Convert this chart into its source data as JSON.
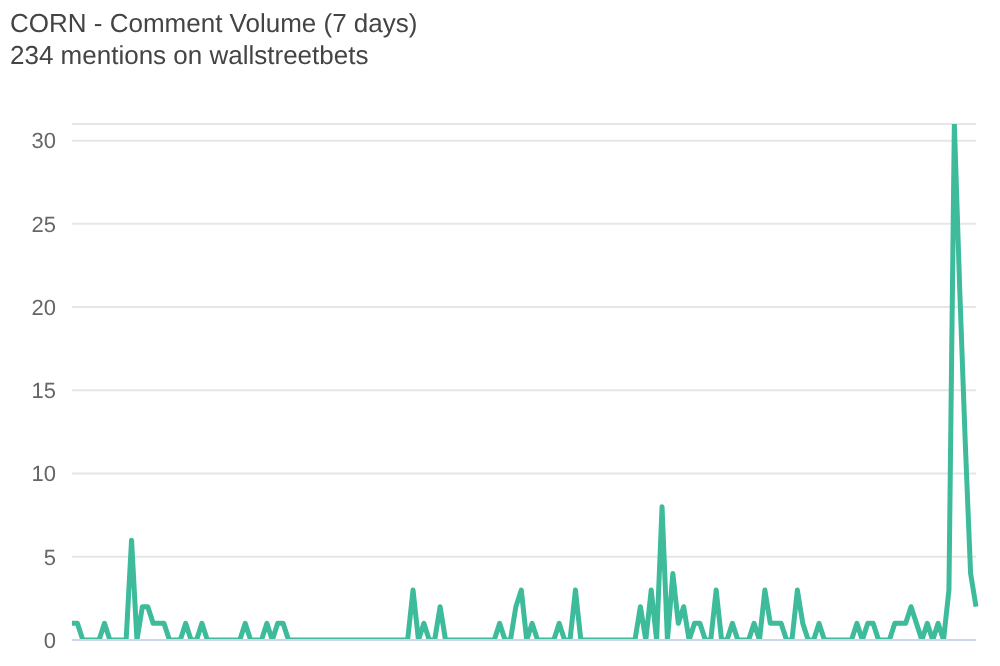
{
  "chart_data": {
    "type": "line",
    "title": "CORN - Comment Volume (7 days)",
    "subtitle": "234 mentions on wallstreetbets",
    "categories": [
      null,
      null,
      null,
      null,
      null,
      null,
      null,
      null,
      null,
      null,
      null,
      null,
      null,
      null,
      null,
      null,
      null,
      null,
      null,
      null,
      null,
      null,
      null,
      null,
      null,
      null,
      null,
      null,
      null,
      null,
      null,
      null,
      null,
      null,
      null,
      null,
      null,
      null,
      null,
      null,
      null,
      null,
      null,
      null,
      null,
      null,
      null,
      null,
      null,
      null,
      null,
      null,
      null,
      null,
      null,
      null,
      null,
      null,
      null,
      null,
      null,
      null,
      null,
      null,
      null,
      null,
      null,
      null,
      null,
      null,
      null,
      null,
      null,
      null,
      null,
      null,
      null,
      null,
      null,
      null,
      null,
      null,
      null,
      null,
      null,
      null,
      null,
      null,
      null,
      null,
      null,
      null,
      null,
      null,
      null,
      null,
      null,
      null,
      null,
      null,
      null,
      null,
      null,
      null,
      null,
      null,
      null,
      null,
      null,
      null,
      null,
      null,
      null,
      null,
      null,
      null,
      null,
      null,
      null,
      null,
      null,
      null,
      null,
      null,
      null,
      null,
      null,
      null,
      null,
      null,
      null,
      null,
      null,
      null,
      null,
      null,
      null,
      null,
      null,
      null,
      null,
      null,
      null,
      null,
      null,
      null,
      null,
      null,
      null,
      null,
      null,
      null,
      null,
      null,
      null,
      null,
      null,
      null,
      null,
      null,
      null,
      null,
      null,
      null,
      null,
      null,
      null,
      null
    ],
    "series": [
      {
        "color": "#3dbb9b",
        "values": [
          1,
          1,
          0,
          0,
          0,
          0,
          1,
          0,
          0,
          0,
          0,
          6,
          0,
          2,
          2,
          1,
          1,
          1,
          0,
          0,
          0,
          1,
          0,
          0,
          1,
          0,
          0,
          0,
          0,
          0,
          0,
          0,
          1,
          0,
          0,
          0,
          1,
          0,
          1,
          1,
          0,
          0,
          0,
          0,
          0,
          0,
          0,
          0,
          0,
          0,
          0,
          0,
          0,
          0,
          0,
          0,
          0,
          0,
          0,
          0,
          0,
          0,
          0,
          3,
          0,
          1,
          0,
          0,
          2,
          0,
          0,
          0,
          0,
          0,
          0,
          0,
          0,
          0,
          0,
          1,
          0,
          0,
          2,
          3,
          0,
          1,
          0,
          0,
          0,
          0,
          1,
          0,
          0,
          3,
          0,
          0,
          0,
          0,
          0,
          0,
          0,
          0,
          0,
          0,
          0,
          2,
          0,
          3,
          0,
          8,
          0,
          4,
          1,
          2,
          0,
          1,
          1,
          0,
          0,
          3,
          0,
          0,
          1,
          0,
          0,
          0,
          1,
          0,
          3,
          1,
          1,
          1,
          0,
          0,
          3,
          1,
          0,
          0,
          1,
          0,
          0,
          0,
          0,
          0,
          0,
          1,
          0,
          1,
          1,
          0,
          0,
          0,
          1,
          1,
          1,
          2,
          1,
          0,
          1,
          0,
          1,
          0,
          3,
          31,
          21,
          12,
          4,
          2
        ]
      }
    ],
    "ylim": [
      0,
      31
    ],
    "yticks": [
      0,
      5,
      10,
      15,
      20,
      25,
      30
    ],
    "grid": "y",
    "tick_labels": "y",
    "marker": "none",
    "line_style": "solid"
  }
}
